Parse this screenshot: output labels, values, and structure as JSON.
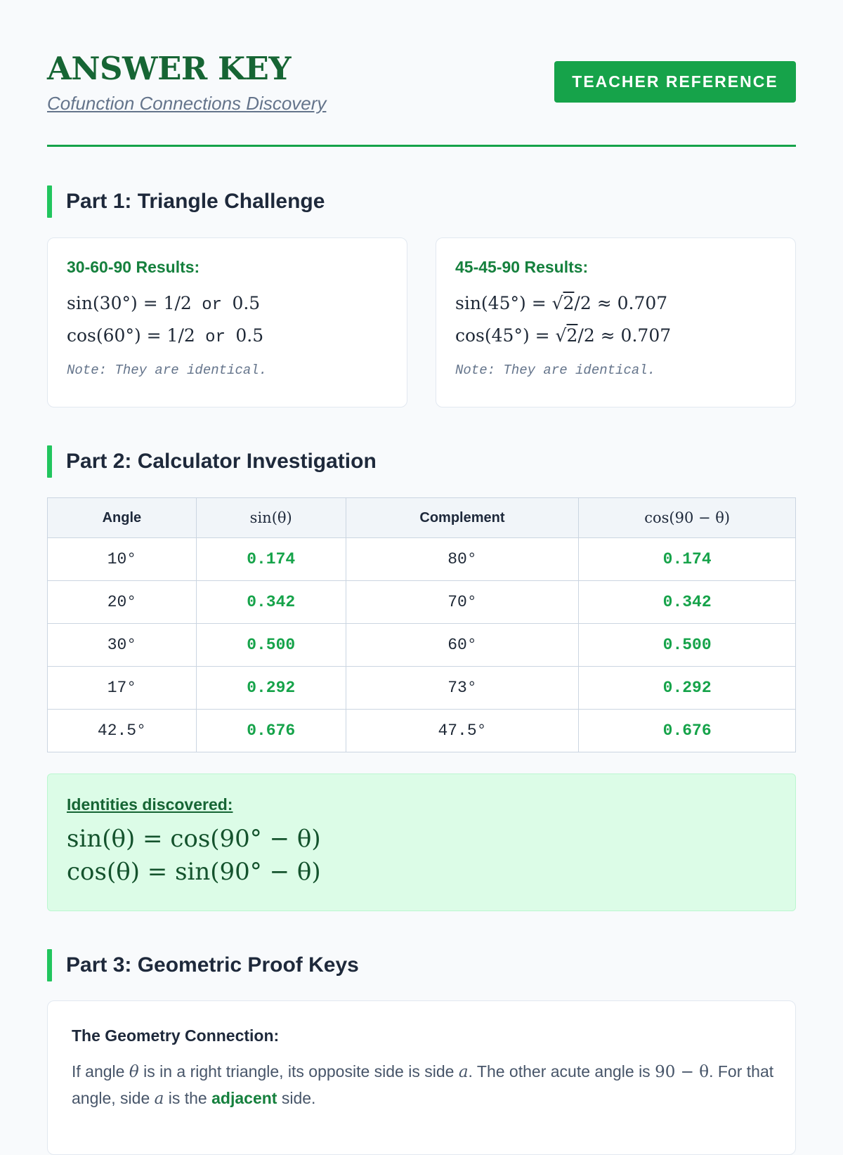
{
  "header": {
    "title": "ANSWER KEY",
    "subtitle": "Cofunction Connections Discovery",
    "badge": "TEACHER REFERENCE"
  },
  "part1": {
    "title": "Part 1: Triangle Challenge",
    "card_a": {
      "heading": "30-60-90 Results:",
      "eq1_lhs": "sin(30°) = 1/2",
      "eq1_or": " or ",
      "eq1_rhs": "0.5",
      "eq2_lhs": "cos(60°) = 1/2",
      "eq2_or": " or ",
      "eq2_rhs": "0.5",
      "note": "Note: They are identical."
    },
    "card_b": {
      "heading": "45-45-90 Results:",
      "eq1_pre": "sin(45°) = √",
      "eq1_rad": "2",
      "eq1_post": "/2 ≈ 0.707",
      "eq2_pre": "cos(45°) = √",
      "eq2_rad": "2",
      "eq2_post": "/2 ≈ 0.707",
      "note": "Note: They are identical."
    }
  },
  "part2": {
    "title": "Part 2: Calculator Investigation",
    "columns": [
      "Angle",
      "sin(θ)",
      "Complement",
      "cos(90 − θ)"
    ],
    "rows": [
      [
        "10°",
        "0.174",
        "80°",
        "0.174"
      ],
      [
        "20°",
        "0.342",
        "70°",
        "0.342"
      ],
      [
        "30°",
        "0.500",
        "60°",
        "0.500"
      ],
      [
        "17°",
        "0.292",
        "73°",
        "0.292"
      ],
      [
        "42.5°",
        "0.676",
        "47.5°",
        "0.676"
      ]
    ],
    "identities": {
      "heading": "Identities discovered:",
      "line1": "sin(θ) = cos(90° − θ)",
      "line2": "cos(θ) = sin(90° − θ)"
    }
  },
  "part3": {
    "title": "Part 3: Geometric Proof Keys",
    "card": {
      "heading": "The Geometry Connection:",
      "t1": "If angle ",
      "v1": "θ",
      "t2": " is in a right triangle, its opposite side is side ",
      "v2": "a",
      "t3": ". The other acute angle is ",
      "v3": "90 − θ",
      "t4": ". For that angle, side ",
      "v4": "a",
      "t5": " is the ",
      "g1": "adjacent",
      "t6": " side."
    }
  },
  "colors": {
    "accent": "#16a34a",
    "heading_green": "#166534",
    "identity_bg": "#dcfce7"
  }
}
